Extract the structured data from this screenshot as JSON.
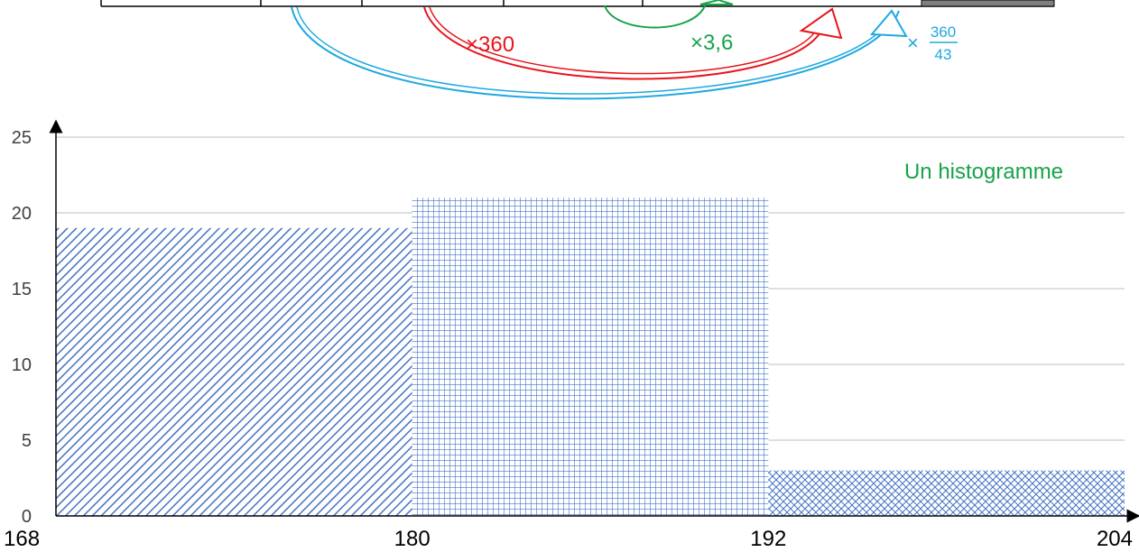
{
  "annotations": {
    "red_multiplier": "×360",
    "green_multiplier": "×3,6",
    "blue_times": "×",
    "blue_numerator": "360",
    "blue_denominator": "43"
  },
  "colors": {
    "red": "#e8141c",
    "green": "#17a34a",
    "blue": "#1fa8e0",
    "bar_pattern": "#4472c4",
    "gridline": "#bfbfbf",
    "table_dark_cell": "#7f7f7f"
  },
  "chart_data": {
    "type": "histogram",
    "title": "Un histogramme",
    "xlabel": "",
    "ylabel": "",
    "x_ticks": [
      168,
      180,
      192,
      204
    ],
    "y_ticks": [
      0,
      5,
      10,
      15,
      20,
      25
    ],
    "xlim": [
      168,
      204
    ],
    "ylim": [
      0,
      25
    ],
    "grid": "horizontal",
    "bins": [
      {
        "from": 168,
        "to": 180,
        "value": 19,
        "pattern": "diagonal-hatch"
      },
      {
        "from": 180,
        "to": 192,
        "value": 21,
        "pattern": "square-grid"
      },
      {
        "from": 192,
        "to": 204,
        "value": 3,
        "pattern": "crosshatch"
      }
    ]
  }
}
